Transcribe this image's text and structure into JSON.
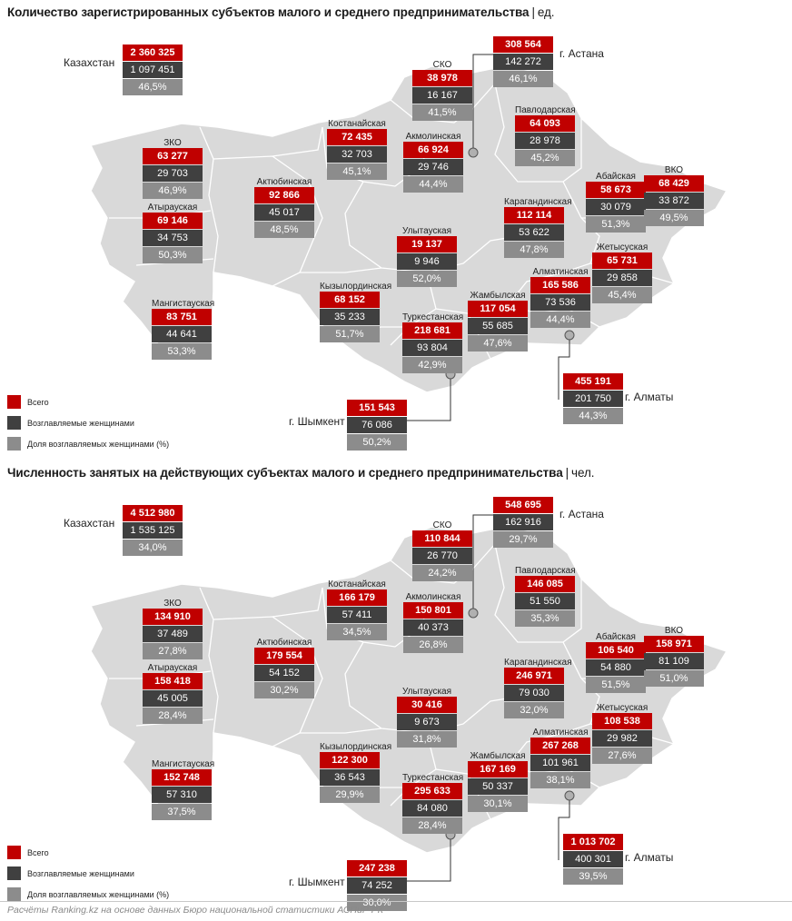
{
  "footer": "Расчёты Ranking.kz на основе данных Бюро национальной статистики АСПиР РК",
  "legend": {
    "total": "Всего",
    "women": "Возглавляемые женщинами",
    "share": "Доля возглавляемых женщинами (%)"
  },
  "colors": {
    "total": "#c00000",
    "women": "#404040",
    "share": "#8c8c8c",
    "map_fill": "#d9d9d9",
    "map_border": "#ffffff"
  },
  "panels": [
    {
      "title": "Количество зарегистрированных субъектов малого и среднего предпринимательства",
      "unit": "ед.",
      "regions": {
        "kazakhstan": {
          "name": "Казахстан",
          "total": "2 360 325",
          "women": "1 097 451",
          "share": "46,5%"
        },
        "astana": {
          "name": "г. Астана",
          "total": "308 564",
          "women": "142 272",
          "share": "46,1%"
        },
        "sko": {
          "name": "СКО",
          "total": "38 978",
          "women": "16 167",
          "share": "41,5%"
        },
        "kostanay": {
          "name": "Костанайская",
          "total": "72 435",
          "women": "32 703",
          "share": "45,1%"
        },
        "pavlodar": {
          "name": "Павлодарская",
          "total": "64 093",
          "women": "28 978",
          "share": "45,2%"
        },
        "akmola": {
          "name": "Акмолинская",
          "total": "66 924",
          "women": "29 746",
          "share": "44,4%"
        },
        "zko": {
          "name": "ЗКО",
          "total": "63 277",
          "women": "29 703",
          "share": "46,9%"
        },
        "aktobe": {
          "name": "Актюбинская",
          "total": "92 866",
          "women": "45 017",
          "share": "48,5%"
        },
        "abai": {
          "name": "Абайская",
          "total": "58 673",
          "women": "30 079",
          "share": "51,3%"
        },
        "vko": {
          "name": "ВКО",
          "total": "68 429",
          "women": "33 872",
          "share": "49,5%"
        },
        "atyrau": {
          "name": "Атырауская",
          "total": "69 146",
          "women": "34 753",
          "share": "50,3%"
        },
        "karaganda": {
          "name": "Карагандинская",
          "total": "112 114",
          "women": "53 622",
          "share": "47,8%"
        },
        "ulytau": {
          "name": "Улытауская",
          "total": "19 137",
          "women": "9 946",
          "share": "52,0%"
        },
        "zhetisu": {
          "name": "Жетысуская",
          "total": "65 731",
          "women": "29 858",
          "share": "45,4%"
        },
        "almaty_reg": {
          "name": "Алматинская",
          "total": "165 586",
          "women": "73 536",
          "share": "44,4%"
        },
        "kyzylorda": {
          "name": "Кызылординская",
          "total": "68 152",
          "women": "35 233",
          "share": "51,7%"
        },
        "mangystau": {
          "name": "Мангистауская",
          "total": "83 751",
          "women": "44 641",
          "share": "53,3%"
        },
        "zhambyl": {
          "name": "Жамбылская",
          "total": "117 054",
          "women": "55 685",
          "share": "47,6%"
        },
        "turkestan": {
          "name": "Туркестанская",
          "total": "218 681",
          "women": "93 804",
          "share": "42,9%"
        },
        "almaty_city": {
          "name": "г. Алматы",
          "total": "455 191",
          "women": "201 750",
          "share": "44,3%"
        },
        "shymkent": {
          "name": "г. Шымкент",
          "total": "151 543",
          "women": "76 086",
          "share": "50,2%"
        }
      }
    },
    {
      "title": "Численность занятых на действующих субъектах малого и среднего предпринимательства",
      "unit": "чел.",
      "regions": {
        "kazakhstan": {
          "name": "Казахстан",
          "total": "4 512 980",
          "women": "1 535 125",
          "share": "34,0%"
        },
        "astana": {
          "name": "г. Астана",
          "total": "548 695",
          "women": "162 916",
          "share": "29,7%"
        },
        "sko": {
          "name": "СКО",
          "total": "110 844",
          "women": "26 770",
          "share": "24,2%"
        },
        "kostanay": {
          "name": "Костанайская",
          "total": "166 179",
          "women": "57 411",
          "share": "34,5%"
        },
        "pavlodar": {
          "name": "Павлодарская",
          "total": "146 085",
          "women": "51 550",
          "share": "35,3%"
        },
        "akmola": {
          "name": "Акмолинская",
          "total": "150 801",
          "women": "40 373",
          "share": "26,8%"
        },
        "zko": {
          "name": "ЗКО",
          "total": "134 910",
          "women": "37 489",
          "share": "27,8%"
        },
        "aktobe": {
          "name": "Актюбинская",
          "total": "179 554",
          "women": "54 152",
          "share": "30,2%"
        },
        "abai": {
          "name": "Абайская",
          "total": "106 540",
          "women": "54 880",
          "share": "51,5%"
        },
        "vko": {
          "name": "ВКО",
          "total": "158 971",
          "women": "81 109",
          "share": "51,0%"
        },
        "atyrau": {
          "name": "Атырауская",
          "total": "158 418",
          "women": "45 005",
          "share": "28,4%"
        },
        "karaganda": {
          "name": "Карагандинская",
          "total": "246 971",
          "women": "79 030",
          "share": "32,0%"
        },
        "ulytau": {
          "name": "Улытауская",
          "total": "30 416",
          "women": "9 673",
          "share": "31,8%"
        },
        "zhetisu": {
          "name": "Жетысуская",
          "total": "108 538",
          "women": "29 982",
          "share": "27,6%"
        },
        "almaty_reg": {
          "name": "Алматинская",
          "total": "267 268",
          "women": "101 961",
          "share": "38,1%"
        },
        "kyzylorda": {
          "name": "Кызылординская",
          "total": "122 300",
          "women": "36 543",
          "share": "29,9%"
        },
        "mangystau": {
          "name": "Мангистауская",
          "total": "152 748",
          "women": "57 310",
          "share": "37,5%"
        },
        "zhambyl": {
          "name": "Жамбылская",
          "total": "167 169",
          "women": "50 337",
          "share": "30,1%"
        },
        "turkestan": {
          "name": "Туркестанская",
          "total": "295 633",
          "women": "84 080",
          "share": "28,4%"
        },
        "almaty_city": {
          "name": "г. Алматы",
          "total": "1 013 702",
          "women": "400 301",
          "share": "39,5%"
        },
        "shymkent": {
          "name": "г. Шымкент",
          "total": "247 238",
          "women": "74 252",
          "share": "30,0%"
        }
      }
    }
  ]
}
